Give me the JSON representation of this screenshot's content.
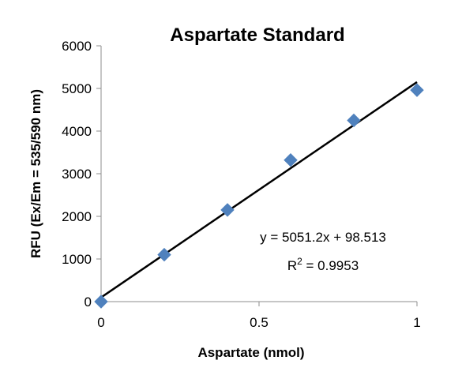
{
  "chart_data": {
    "type": "scatter",
    "title": "Aspartate Standard",
    "xlabel": "Aspartate (nmol)",
    "ylabel": "RFU (Ex/Em = 535/590 nm)",
    "xlim": [
      0,
      1
    ],
    "ylim": [
      0,
      6000
    ],
    "x_ticks": [
      0,
      0.5,
      1
    ],
    "x_tick_labels": [
      "0",
      "0.5",
      "1"
    ],
    "y_ticks": [
      0,
      1000,
      2000,
      3000,
      4000,
      5000,
      6000
    ],
    "y_tick_labels": [
      "0",
      "1000",
      "2000",
      "3000",
      "4000",
      "5000",
      "6000"
    ],
    "grid": false,
    "legend": "none",
    "series": [
      {
        "marker": "diamond",
        "color": "#4f81bd",
        "x": [
          0,
          0.2,
          0.4,
          0.6,
          0.8,
          1.0
        ],
        "y": [
          0,
          1100,
          2150,
          3320,
          4250,
          4960
        ]
      }
    ],
    "trendline": {
      "slope": 5051.2,
      "intercept": 98.513,
      "color": "#000000"
    },
    "annotations": {
      "equation": "y = 5051.2x + 98.513",
      "r2_prefix": "R",
      "r2_sup": "2",
      "r2_suffix": " = 0.9953"
    }
  }
}
